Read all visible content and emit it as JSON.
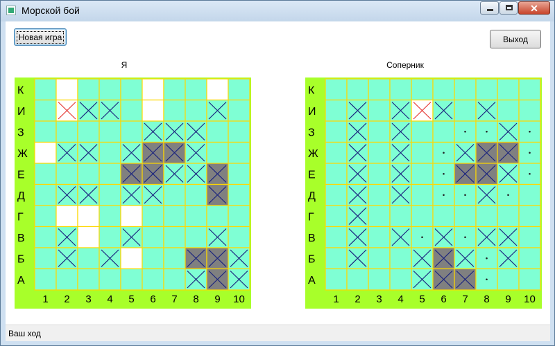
{
  "window": {
    "title": "Морской бой",
    "close_glyph": "✕"
  },
  "toolbar": {
    "new_game_label": "Новая игра",
    "exit_label": "Выход"
  },
  "status_bar": {
    "text": "Ваш ход"
  },
  "colors": {
    "board_frame": "#a8ff2a",
    "water": "#7fffd4",
    "gridline": "#ffd700",
    "open_cell": "#ffffff",
    "ship_hit": "#808080",
    "miss_mark": "#1a237e",
    "last_shot_mark": "#e53935"
  },
  "boards": [
    {
      "id": "me",
      "label": "Я",
      "rows": [
        "К",
        "И",
        "З",
        "Ж",
        "Е",
        "Д",
        "Г",
        "В",
        "Б",
        "А"
      ],
      "cols": [
        "1",
        "2",
        "3",
        "4",
        "5",
        "6",
        "7",
        "8",
        "9",
        "10"
      ],
      "cells": [
        ". W . . . W . . W .",
        ". R X X . W . . X .",
        ". . . . . X X X . .",
        "W X X . X H H X . .",
        ". . . . H H X X H .",
        ". X X . X X . . H .",
        ". W W . W . . . . .",
        ". X W . X . . . X .",
        ". X . X W . . H H X",
        ". . . . . . . X H X"
      ]
    },
    {
      "id": "opponent",
      "label": "Соперник",
      "rows": [
        "К",
        "И",
        "З",
        "Ж",
        "Е",
        "Д",
        "Г",
        "В",
        "Б",
        "А"
      ],
      "cols": [
        "1",
        "2",
        "3",
        "4",
        "5",
        "6",
        "7",
        "8",
        "9",
        "10"
      ],
      "cells": [
        ". . . . . . . . . .",
        ". X . X R X . X . .",
        ". X . X . . d d X d",
        ". X . X . d X H H d",
        ". X . X . d H H X d",
        ". X . X . d d X d .",
        ". X . . . . . . . .",
        ". X . X d X d X X .",
        ". X . . X H X d X .",
        ". . . . X H H d . ."
      ]
    }
  ]
}
